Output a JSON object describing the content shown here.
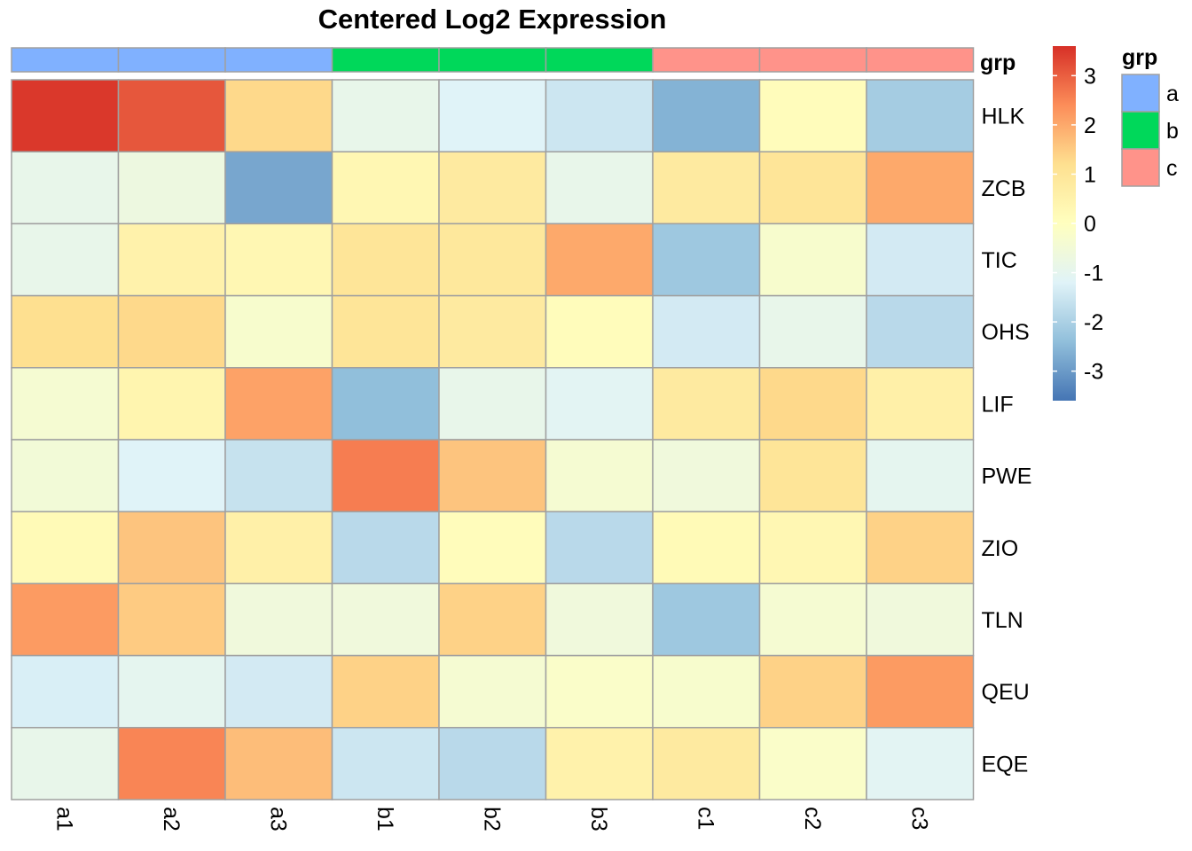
{
  "chart_data": {
    "type": "heatmap",
    "title": "Centered Log2 Expression",
    "columns": [
      "a1",
      "a2",
      "a3",
      "b1",
      "b2",
      "b3",
      "c1",
      "c2",
      "c3"
    ],
    "rows": [
      "HLK",
      "ZCB",
      "TIC",
      "OHS",
      "LIF",
      "PWE",
      "ZIO",
      "TLN",
      "QEU",
      "EQE"
    ],
    "values": [
      [
        3.5,
        3.1,
        1.3,
        -0.9,
        -1.2,
        -1.5,
        -2.6,
        0.1,
        -2.1
      ],
      [
        -0.9,
        -0.7,
        -2.8,
        0.3,
        0.8,
        -0.9,
        0.8,
        1.0,
        2.0
      ],
      [
        -0.9,
        0.5,
        0.3,
        1.0,
        0.9,
        2.0,
        -2.2,
        -0.3,
        -1.4
      ],
      [
        1.2,
        1.3,
        -0.3,
        1.0,
        0.8,
        0.1,
        -1.4,
        -0.9,
        -1.8
      ],
      [
        -0.4,
        0.4,
        2.1,
        -2.4,
        -0.9,
        -1.1,
        0.8,
        1.3,
        0.6
      ],
      [
        -0.5,
        -1.2,
        -1.6,
        2.6,
        1.6,
        -0.4,
        -0.6,
        1.0,
        -1.0
      ],
      [
        0.2,
        1.6,
        0.6,
        -1.8,
        0.1,
        -1.8,
        0.2,
        0.3,
        1.4
      ],
      [
        2.2,
        1.5,
        -0.6,
        -0.6,
        1.4,
        -0.6,
        -2.2,
        -0.4,
        -0.6
      ],
      [
        -1.3,
        -1.0,
        -1.4,
        1.4,
        -0.4,
        -0.2,
        -0.3,
        1.4,
        2.2
      ],
      [
        -0.9,
        2.5,
        1.7,
        -1.5,
        -1.8,
        0.5,
        0.8,
        -0.2,
        -1.1
      ]
    ],
    "annotation": {
      "name": "grp",
      "values": [
        "a",
        "a",
        "a",
        "b",
        "b",
        "b",
        "c",
        "c",
        "c"
      ],
      "levels": [
        "a",
        "b",
        "c"
      ],
      "colors": {
        "a": "#80B1FF",
        "b": "#00D85A",
        "c": "#FF938A"
      }
    },
    "color_scale": {
      "palette": [
        "#4575B4",
        "#91BFDB",
        "#E0F3F8",
        "#FFFFBF",
        "#FEE090",
        "#FC8D59",
        "#D73027"
      ],
      "range": [
        -3.6,
        3.6
      ],
      "ticks": [
        -3,
        -2,
        -1,
        0,
        1,
        2,
        3
      ]
    },
    "cell_border_color": "#a0a0a0"
  }
}
